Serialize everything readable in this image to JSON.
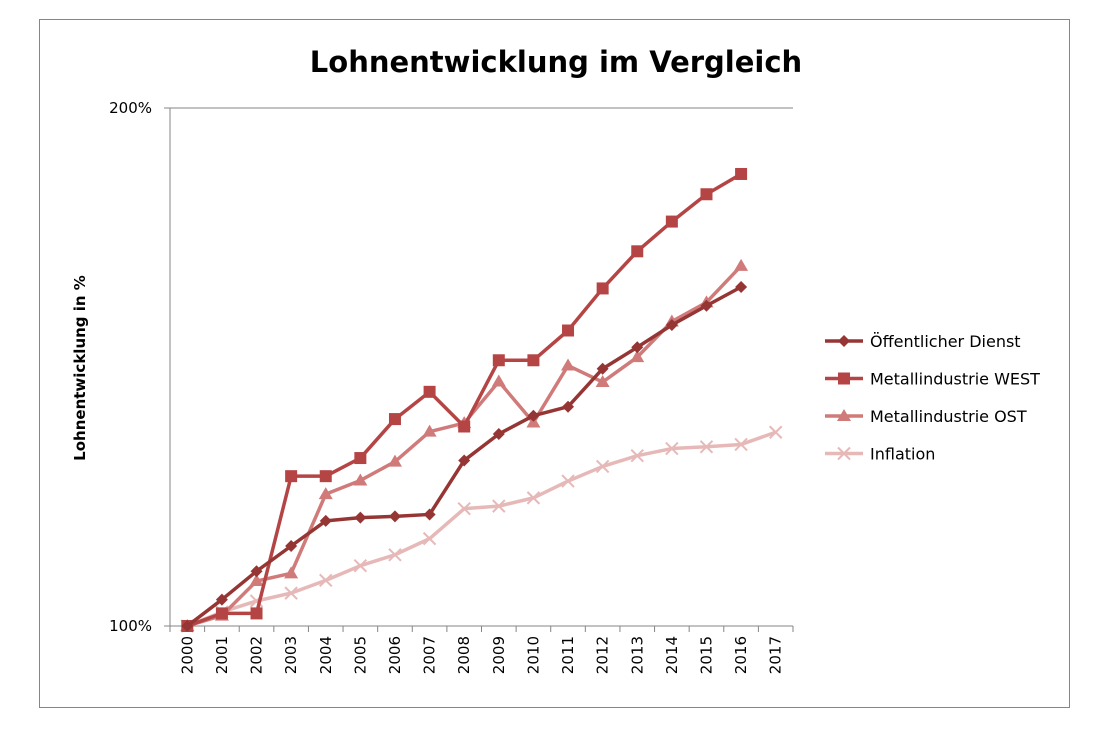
{
  "chart_data": {
    "type": "line",
    "title": "Lohnentwicklung im Vergleich",
    "xlabel": "",
    "ylabel": "Lohnentwicklung in %",
    "yscale": "log",
    "ylim": [
      100,
      200
    ],
    "ytick_labels": [
      "100%",
      "200%"
    ],
    "grid": true,
    "legend_position": "right",
    "categories": [
      "2000",
      "2001",
      "2002",
      "2003",
      "2004",
      "2005",
      "2006",
      "2007",
      "2008",
      "2009",
      "2010",
      "2011",
      "2012",
      "2013",
      "2014",
      "2015",
      "2016",
      "2017"
    ],
    "series": [
      {
        "name": "Öffentlicher Dienst",
        "color": "#963634",
        "marker": "diamond",
        "values": [
          100,
          103.6,
          107.6,
          111.3,
          115.1,
          115.6,
          115.8,
          116.1,
          124.8,
          129.3,
          132.5,
          134.1,
          141.1,
          145.2,
          149.6,
          153.5,
          157.4,
          null
        ]
      },
      {
        "name": "Metallindustrie WEST",
        "color": "#b54545",
        "marker": "square",
        "values": [
          100,
          101.7,
          101.7,
          122.2,
          122.2,
          125.2,
          131.9,
          136.8,
          130.6,
          142.7,
          142.7,
          148.5,
          157.1,
          165.1,
          171.8,
          178.2,
          183.1,
          null
        ]
      },
      {
        "name": "Metallindustrie OST",
        "color": "#d07a7a",
        "marker": "triangle",
        "values": [
          100,
          101.4,
          106.2,
          107.3,
          119.3,
          121.5,
          124.6,
          129.7,
          131.2,
          138.7,
          131.3,
          141.7,
          138.6,
          143.3,
          150.3,
          154.2,
          161.9,
          null
        ]
      },
      {
        "name": "Inflation",
        "color": "#e6b9b8",
        "marker": "x",
        "values": [
          100,
          101.9,
          103.4,
          104.5,
          106.3,
          108.4,
          110.0,
          112.4,
          117.0,
          117.4,
          118.7,
          121.4,
          123.8,
          125.6,
          126.8,
          127.1,
          127.5,
          129.6
        ]
      }
    ]
  }
}
